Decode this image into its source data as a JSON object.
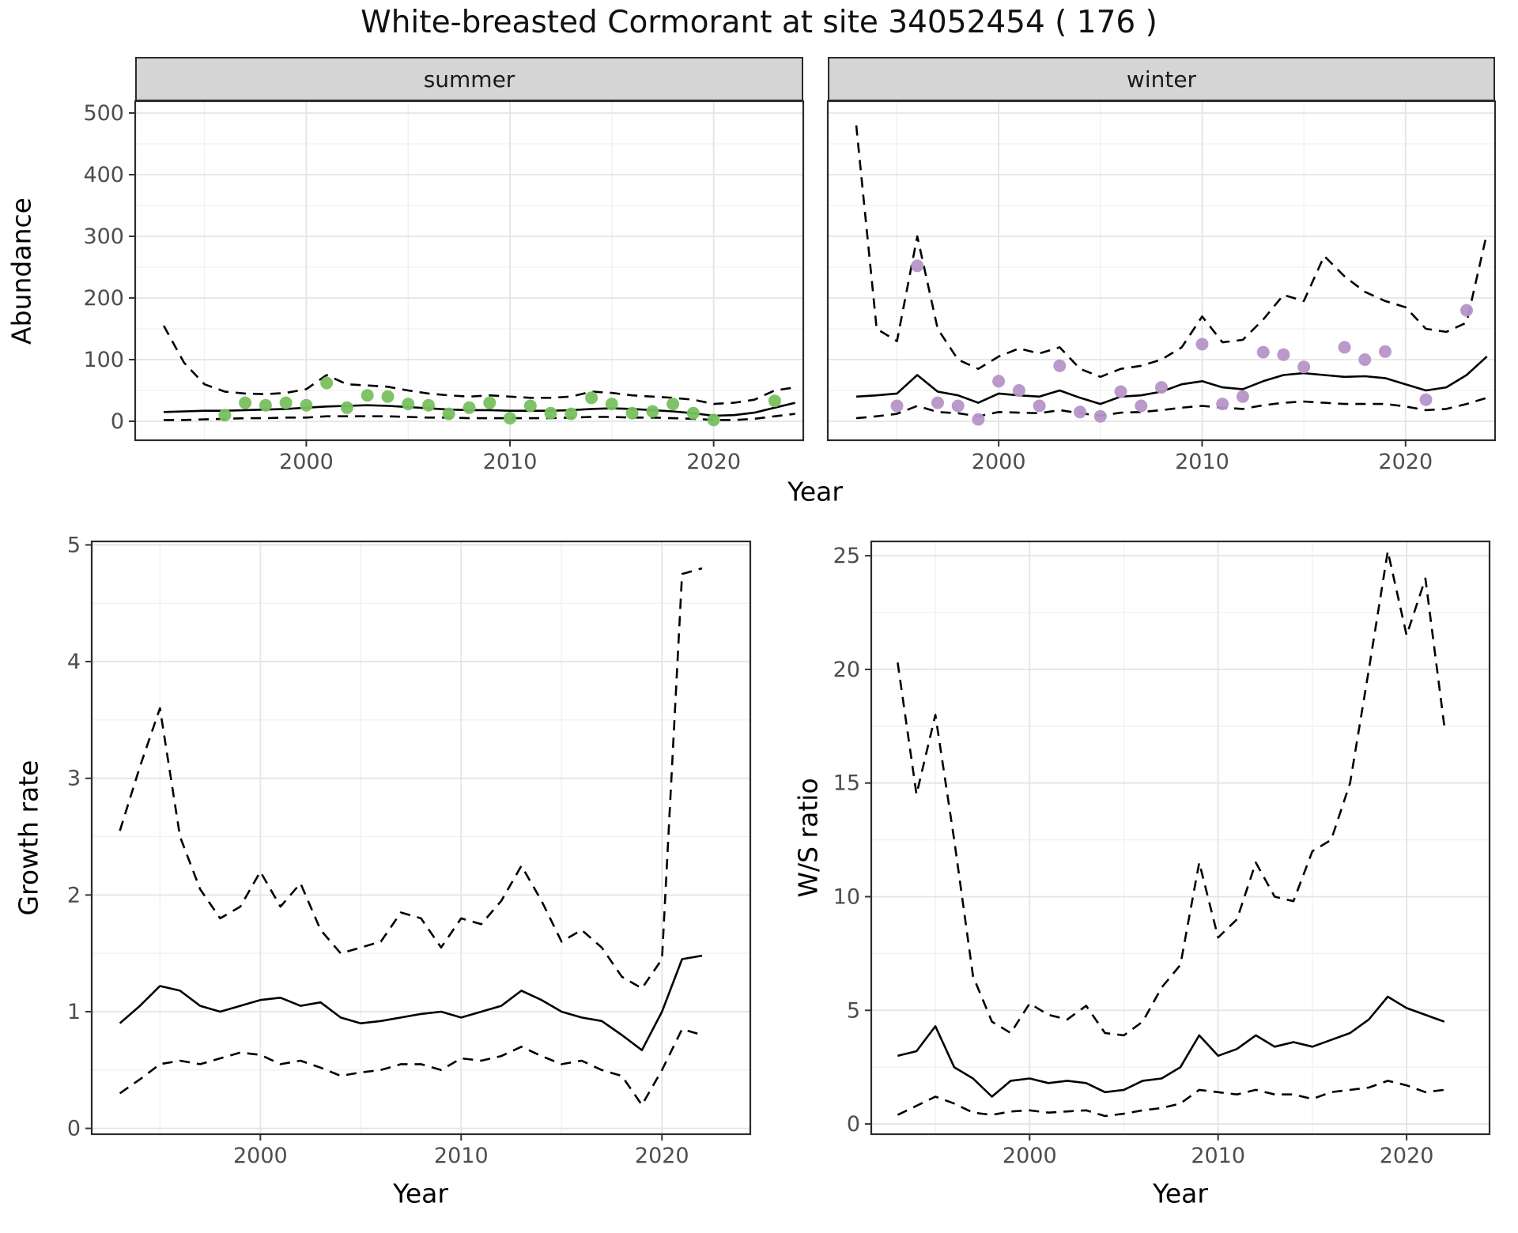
{
  "title": "White-breasted Cormorant at site 34052454 ( 176 )",
  "facets": {
    "summer": "summer",
    "winter": "winter"
  },
  "axis_labels": {
    "abundance": "Abundance",
    "growth_rate": "Growth rate",
    "ws_ratio": "W/S ratio",
    "year": "Year"
  },
  "colors": {
    "summer_point": "#78c05f",
    "winter_point": "#b694c8",
    "fit_line": "#000000",
    "ci_line": "#000000",
    "strip_bg": "#d5d5d5",
    "panel_border": "#2b2b2b",
    "grid_major": "#e4e4e4",
    "grid_minor": "#f0f0f0",
    "tick_mark": "#333333",
    "tick_text": "#4d4d4d"
  },
  "chart_data": [
    {
      "id": "abundance-summer",
      "type": "scatter",
      "facet_label": "summer",
      "xlabel": "Year",
      "ylabel": "Abundance",
      "xlim": [
        1991.6,
        2024.4
      ],
      "ylim": [
        -30.8,
        519.2
      ],
      "xticks": [
        2000,
        2010,
        2020
      ],
      "xminor": [
        1995,
        2005,
        2015
      ],
      "yticks": [
        0,
        100,
        200,
        300,
        400,
        500
      ],
      "yminor": [
        50,
        150,
        250,
        350,
        450
      ],
      "show_y_tick_labels": true,
      "point_color_key": "summer_point",
      "line_x": [
        1993,
        1994,
        1995,
        1996,
        1997,
        1998,
        1999,
        2000,
        2001,
        2002,
        2003,
        2004,
        2005,
        2006,
        2007,
        2008,
        2009,
        2010,
        2011,
        2012,
        2013,
        2014,
        2015,
        2016,
        2017,
        2018,
        2019,
        2020,
        2021,
        2022,
        2023,
        2024
      ],
      "fit_y": [
        15,
        16,
        17,
        17,
        18,
        19,
        20,
        22,
        24,
        25,
        26,
        25,
        23,
        21,
        19,
        18,
        18,
        17,
        17,
        17,
        18,
        20,
        21,
        20,
        18,
        16,
        13,
        9,
        10,
        14,
        22,
        30
      ],
      "upper_y": [
        155,
        95,
        60,
        48,
        45,
        44,
        46,
        52,
        75,
        60,
        58,
        56,
        50,
        45,
        42,
        40,
        42,
        40,
        38,
        38,
        40,
        48,
        46,
        42,
        40,
        38,
        35,
        28,
        30,
        35,
        50,
        55
      ],
      "lower_y": [
        2,
        2,
        3,
        4,
        5,
        5,
        6,
        6,
        8,
        8,
        8,
        8,
        7,
        6,
        6,
        5,
        5,
        5,
        5,
        5,
        6,
        7,
        7,
        6,
        6,
        5,
        4,
        2,
        2,
        4,
        8,
        12
      ],
      "points": {
        "x": [
          1996,
          1997,
          1998,
          1999,
          2000,
          2001,
          2002,
          2003,
          2004,
          2005,
          2006,
          2007,
          2008,
          2009,
          2010,
          2011,
          2012,
          2013,
          2014,
          2015,
          2016,
          2017,
          2018,
          2019,
          2020,
          2023
        ],
        "y": [
          10,
          30,
          26,
          30,
          26,
          62,
          22,
          42,
          40,
          28,
          26,
          12,
          22,
          30,
          5,
          25,
          13,
          12,
          38,
          28,
          13,
          16,
          28,
          13,
          2,
          33
        ]
      }
    },
    {
      "id": "abundance-winter",
      "type": "scatter",
      "facet_label": "winter",
      "xlabel": "Year",
      "ylabel": "Abundance",
      "xlim": [
        1991.6,
        2024.4
      ],
      "ylim": [
        -30.8,
        519.2
      ],
      "xticks": [
        2000,
        2010,
        2020
      ],
      "xminor": [
        1995,
        2005,
        2015
      ],
      "yticks": [
        0,
        100,
        200,
        300,
        400,
        500
      ],
      "yminor": [
        50,
        150,
        250,
        350,
        450
      ],
      "show_y_tick_labels": false,
      "point_color_key": "winter_point",
      "line_x": [
        1993,
        1994,
        1995,
        1996,
        1997,
        1998,
        1999,
        2000,
        2001,
        2002,
        2003,
        2004,
        2005,
        2006,
        2007,
        2008,
        2009,
        2010,
        2011,
        2012,
        2013,
        2014,
        2015,
        2016,
        2017,
        2018,
        2019,
        2020,
        2021,
        2022,
        2023,
        2024
      ],
      "fit_y": [
        40,
        42,
        45,
        75,
        48,
        42,
        30,
        45,
        42,
        40,
        50,
        38,
        28,
        40,
        42,
        48,
        60,
        65,
        55,
        52,
        65,
        75,
        78,
        75,
        72,
        73,
        70,
        60,
        50,
        55,
        75,
        105
      ],
      "upper_y": [
        480,
        150,
        130,
        300,
        150,
        100,
        85,
        105,
        118,
        110,
        120,
        85,
        72,
        85,
        90,
        100,
        120,
        170,
        128,
        132,
        165,
        205,
        195,
        268,
        235,
        210,
        195,
        185,
        150,
        145,
        160,
        305
      ],
      "lower_y": [
        5,
        8,
        12,
        25,
        15,
        13,
        8,
        15,
        14,
        13,
        18,
        13,
        9,
        14,
        15,
        18,
        22,
        25,
        22,
        20,
        26,
        30,
        32,
        30,
        28,
        28,
        28,
        24,
        18,
        20,
        28,
        38
      ],
      "points": {
        "x": [
          1995,
          1996,
          1997,
          1998,
          1999,
          2000,
          2001,
          2002,
          2003,
          2004,
          2005,
          2006,
          2007,
          2008,
          2010,
          2011,
          2012,
          2013,
          2014,
          2015,
          2017,
          2018,
          2019,
          2021,
          2023
        ],
        "y": [
          25,
          252,
          30,
          25,
          3,
          65,
          50,
          25,
          90,
          15,
          8,
          48,
          25,
          55,
          125,
          28,
          40,
          112,
          108,
          88,
          120,
          100,
          113,
          35,
          180
        ]
      }
    },
    {
      "id": "growth-rate",
      "type": "line",
      "xlabel": "Year",
      "ylabel": "Growth rate",
      "xlim": [
        1991.6,
        2024.4
      ],
      "ylim": [
        -0.05,
        5.03
      ],
      "xticks": [
        2000,
        2010,
        2020
      ],
      "xminor": [
        1995,
        2005,
        2015
      ],
      "yticks": [
        0,
        1,
        2,
        3,
        4,
        5
      ],
      "yminor": [
        0.5,
        1.5,
        2.5,
        3.5,
        4.5
      ],
      "show_y_tick_labels": true,
      "line_x": [
        1993,
        1994,
        1995,
        1996,
        1997,
        1998,
        1999,
        2000,
        2001,
        2002,
        2003,
        2004,
        2005,
        2006,
        2007,
        2008,
        2009,
        2010,
        2011,
        2012,
        2013,
        2014,
        2015,
        2016,
        2017,
        2018,
        2019,
        2020,
        2021,
        2022
      ],
      "fit_y": [
        0.9,
        1.05,
        1.22,
        1.18,
        1.05,
        1.0,
        1.05,
        1.1,
        1.12,
        1.05,
        1.08,
        0.95,
        0.9,
        0.92,
        0.95,
        0.98,
        1.0,
        0.95,
        1.0,
        1.05,
        1.18,
        1.1,
        1.0,
        0.95,
        0.92,
        0.8,
        0.67,
        1.0,
        1.45,
        1.48
      ],
      "upper_y": [
        2.55,
        3.1,
        3.6,
        2.5,
        2.05,
        1.8,
        1.9,
        2.2,
        1.9,
        2.1,
        1.7,
        1.5,
        1.55,
        1.6,
        1.85,
        1.8,
        1.55,
        1.8,
        1.75,
        1.95,
        2.25,
        1.95,
        1.6,
        1.7,
        1.55,
        1.3,
        1.2,
        1.45,
        4.75,
        4.8
      ],
      "lower_y": [
        0.3,
        0.42,
        0.55,
        0.58,
        0.55,
        0.6,
        0.65,
        0.63,
        0.55,
        0.58,
        0.52,
        0.45,
        0.48,
        0.5,
        0.55,
        0.55,
        0.5,
        0.6,
        0.58,
        0.62,
        0.7,
        0.62,
        0.55,
        0.58,
        0.5,
        0.45,
        0.2,
        0.5,
        0.85,
        0.8
      ]
    },
    {
      "id": "ws-ratio",
      "type": "line",
      "xlabel": "Year",
      "ylabel": "W/S ratio",
      "xlim": [
        1991.6,
        2024.4
      ],
      "ylim": [
        -0.45,
        25.63
      ],
      "xticks": [
        2000,
        2010,
        2020
      ],
      "xminor": [
        1995,
        2005,
        2015
      ],
      "yticks": [
        0,
        5,
        10,
        15,
        20,
        25
      ],
      "yminor": [
        2.5,
        7.5,
        12.5,
        17.5,
        22.5
      ],
      "show_y_tick_labels": true,
      "line_x": [
        1993,
        1994,
        1995,
        1996,
        1997,
        1998,
        1999,
        2000,
        2001,
        2002,
        2003,
        2004,
        2005,
        2006,
        2007,
        2008,
        2009,
        2010,
        2011,
        2012,
        2013,
        2014,
        2015,
        2016,
        2017,
        2018,
        2019,
        2020,
        2021,
        2022
      ],
      "fit_y": [
        3.0,
        3.2,
        4.3,
        2.5,
        2.0,
        1.2,
        1.9,
        2.0,
        1.8,
        1.9,
        1.8,
        1.4,
        1.5,
        1.9,
        2.0,
        2.5,
        3.9,
        3.0,
        3.3,
        3.9,
        3.4,
        3.6,
        3.4,
        3.7,
        4.0,
        4.6,
        5.6,
        5.1,
        4.8,
        4.5
      ],
      "upper_y": [
        20.3,
        14.5,
        18.0,
        12.5,
        6.5,
        4.5,
        4.0,
        5.3,
        4.8,
        4.6,
        5.2,
        4.0,
        3.9,
        4.5,
        6.0,
        7.0,
        11.5,
        8.2,
        9.0,
        11.5,
        10.0,
        9.8,
        12.0,
        12.5,
        15.0,
        20.0,
        25.2,
        21.5,
        24.0,
        17.5
      ],
      "lower_y": [
        0.4,
        0.8,
        1.2,
        0.9,
        0.5,
        0.4,
        0.55,
        0.6,
        0.5,
        0.55,
        0.6,
        0.35,
        0.45,
        0.6,
        0.7,
        0.9,
        1.5,
        1.4,
        1.3,
        1.5,
        1.3,
        1.3,
        1.1,
        1.4,
        1.5,
        1.6,
        1.9,
        1.7,
        1.4,
        1.5
      ]
    }
  ]
}
